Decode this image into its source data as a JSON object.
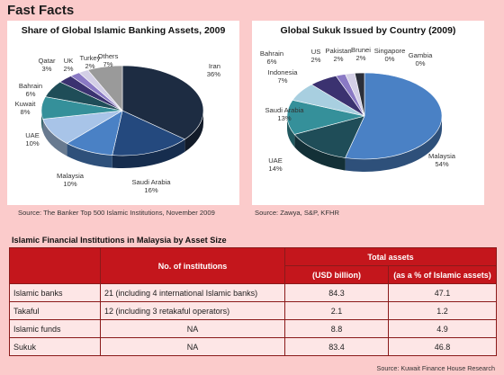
{
  "header": {
    "title": "Fast Facts"
  },
  "chart_data": [
    {
      "type": "pie",
      "title": "Share of Global Islamic Banking Assets, 2009",
      "slices": [
        {
          "label": "Iran",
          "value": 36,
          "display": "36%",
          "color": "#1d2c42"
        },
        {
          "label": "Saudi Arabia",
          "value": 16,
          "display": "16%",
          "color": "#24497e"
        },
        {
          "label": "Malaysia",
          "value": 10,
          "display": "10%",
          "color": "#4a81c5"
        },
        {
          "label": "UAE",
          "value": 10,
          "display": "10%",
          "color": "#a8c4e8"
        },
        {
          "label": "Kuwait",
          "value": 8,
          "display": "8%",
          "color": "#35909a"
        },
        {
          "label": "Bahrain",
          "value": 6,
          "display": "6%",
          "color": "#1f4d58"
        },
        {
          "label": "Qatar",
          "value": 3,
          "display": "3%",
          "color": "#3b3270"
        },
        {
          "label": "UK",
          "value": 2,
          "display": "2%",
          "color": "#8a79c4"
        },
        {
          "label": "Turkey",
          "value": 2,
          "display": "2%",
          "color": "#d3cfe6"
        },
        {
          "label": "Others",
          "value": 7,
          "display": "7%",
          "color": "#9a9a9a"
        }
      ],
      "source": "Source: The Banker Top 500 Islamic Institutions, November 2009"
    },
    {
      "type": "pie",
      "title": "Global Sukuk Issued by Country (2009)",
      "slices": [
        {
          "label": "Malaysia",
          "value": 54,
          "display": "54%",
          "color": "#4a81c5"
        },
        {
          "label": "UAE",
          "value": 14,
          "display": "14%",
          "color": "#1f4d58"
        },
        {
          "label": "Saudi Arabia",
          "value": 13,
          "display": "13%",
          "color": "#35909a"
        },
        {
          "label": "Indonesia",
          "value": 7,
          "display": "7%",
          "color": "#a8cfe0"
        },
        {
          "label": "Bahrain",
          "value": 6,
          "display": "6%",
          "color": "#3b3270"
        },
        {
          "label": "US",
          "value": 2,
          "display": "2%",
          "color": "#8a79c4"
        },
        {
          "label": "Pakistan",
          "value": 2,
          "display": "2%",
          "color": "#d3cfe6"
        },
        {
          "label": "Brunei",
          "value": 2,
          "display": "2%",
          "color": "#2b2f3a"
        },
        {
          "label": "Singapore",
          "value": 0,
          "display": "0%",
          "color": "#9a9a9a"
        },
        {
          "label": "Gambia",
          "value": 0,
          "display": "0%",
          "color": "#b7b7b7"
        }
      ],
      "source": "Source: Zawya, S&P, KFHR"
    }
  ],
  "table": {
    "title": "Islamic Financial Institutions in Malaysia by Asset Size",
    "headers": {
      "institutions": "No. of institutions",
      "total": "Total assets",
      "usd": "(USD billion)",
      "pct": "(as a % of Islamic assets)"
    },
    "rows": [
      {
        "name": "Islamic banks",
        "institutions": "21 (including 4 international Islamic banks)",
        "usd": "84.3",
        "pct": "47.1"
      },
      {
        "name": "Takaful",
        "institutions": "12 (including 3 retakaful operators)",
        "usd": "2.1",
        "pct": "1.2"
      },
      {
        "name": "Islamic funds",
        "institutions": "NA",
        "usd": "8.8",
        "pct": "4.9"
      },
      {
        "name": "Sukuk",
        "institutions": "NA",
        "usd": "83.4",
        "pct": "46.8"
      }
    ],
    "source": "Source: Kuwait Finance House Research"
  }
}
